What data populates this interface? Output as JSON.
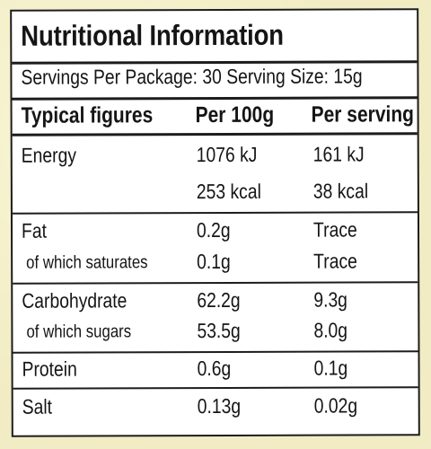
{
  "title": "Nutritional Information",
  "servings_line": "Servings Per Package: 30   Serving Size: 15g",
  "header": {
    "name": "Typical figures",
    "per100": "Per 100g",
    "perServing": "Per serving"
  },
  "rows": [
    {
      "name": "Energy",
      "per100": "1076 kJ",
      "perServing": "161 kJ"
    },
    {
      "name": "",
      "per100": "253 kcal",
      "perServing": "38 kcal"
    },
    {
      "name": "Fat",
      "per100": "0.2g",
      "perServing": "Trace"
    },
    {
      "name": "of which saturates",
      "per100": "0.1g",
      "perServing": "Trace"
    },
    {
      "name": "Carbohydrate",
      "per100": "62.2g",
      "perServing": "9.3g"
    },
    {
      "name": "of which sugars",
      "per100": "53.5g",
      "perServing": "8.0g"
    },
    {
      "name": "Protein",
      "per100": "0.6g",
      "perServing": "0.1g"
    },
    {
      "name": "Salt",
      "per100": "0.13g",
      "perServing": "0.02g"
    }
  ]
}
